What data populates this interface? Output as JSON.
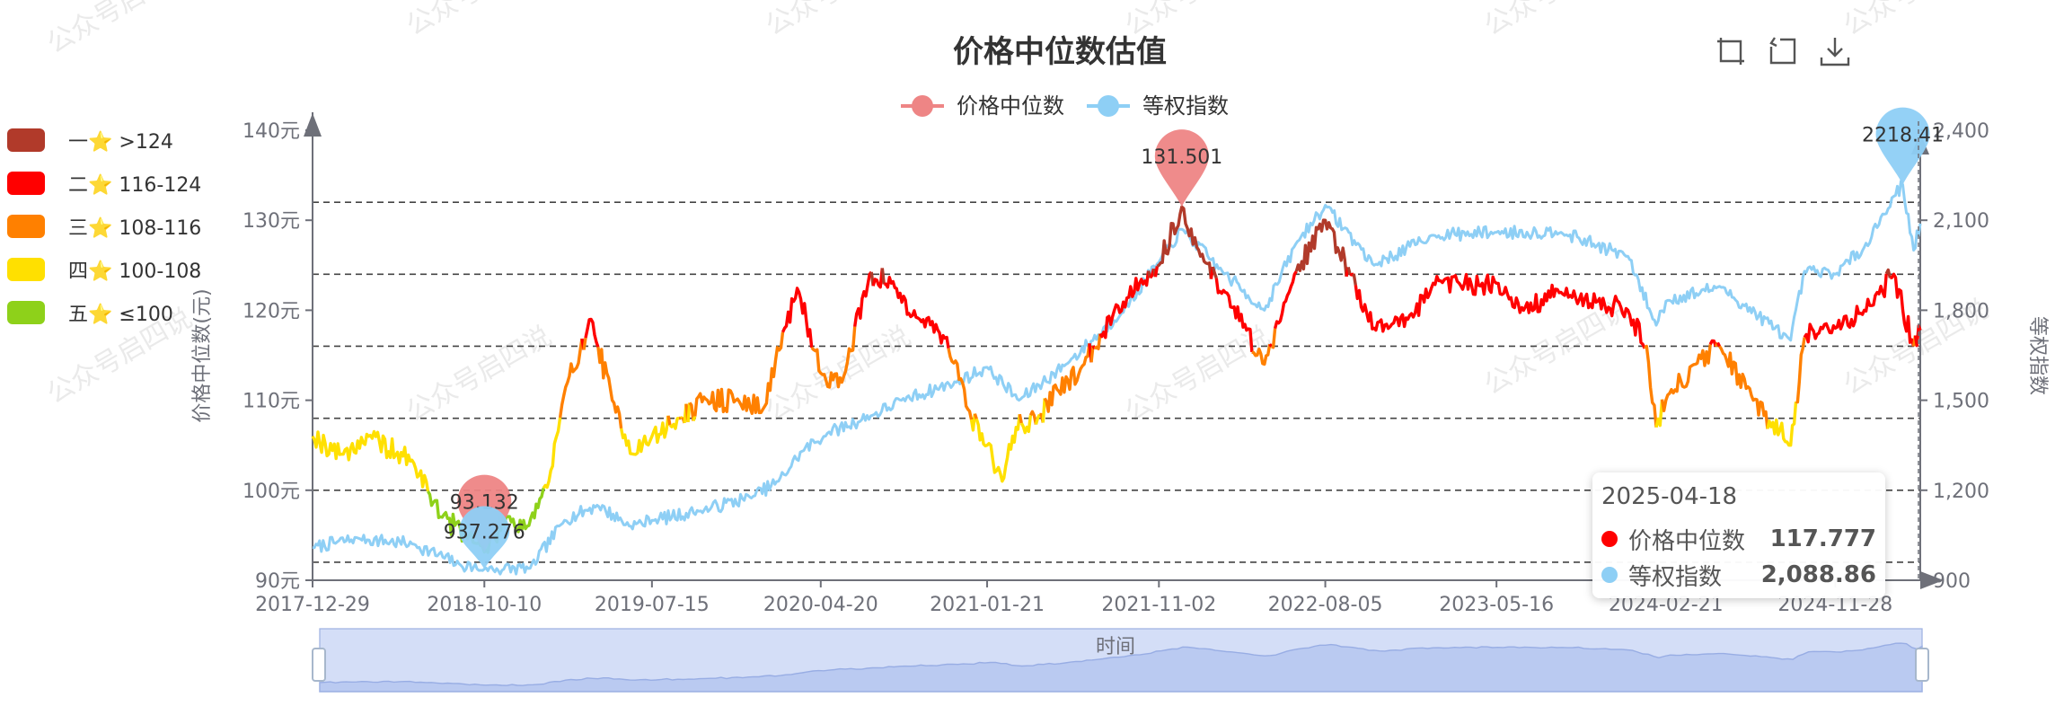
{
  "title": "价格中位数估值",
  "legend_top": [
    {
      "name": "价格中位数",
      "color": "#ee8585"
    },
    {
      "name": "等权指数",
      "color": "#8ecff5"
    }
  ],
  "valuation_bands": [
    {
      "label": "一⭐  >124",
      "color": "#b13a2a"
    },
    {
      "label": "二⭐  116-124",
      "color": "#ff0000"
    },
    {
      "label": "三⭐  108-116",
      "color": "#ff8000"
    },
    {
      "label": "四⭐  100-108",
      "color": "#ffe000"
    },
    {
      "label": "五⭐  ≤100",
      "color": "#8ed11a"
    }
  ],
  "toolbox": [
    "zoom-icon",
    "restore-icon",
    "download-icon"
  ],
  "tooltip": {
    "date": "2025-04-18",
    "rows": [
      {
        "name": "价格中位数",
        "value": "117.777",
        "color": "#ff0000"
      },
      {
        "name": "等权指数",
        "value": "2,088.86",
        "color": "#8ecff5"
      }
    ]
  },
  "watermark": "公众号启四说",
  "datazoom": {
    "label": "时间"
  },
  "chart_data": {
    "type": "line",
    "xlabel": "",
    "ylabel_left": "价格中位数(元)",
    "ylabel_right": "等权指数",
    "x_ticks": [
      "2017-12-29",
      "2018-10-10",
      "2019-07-15",
      "2020-04-20",
      "2021-01-21",
      "2021-11-02",
      "2022-08-05",
      "2023-05-16",
      "2024-02-21",
      "2024-11-28"
    ],
    "y_left_ticks": [
      "140元",
      "130元",
      "120元",
      "110元",
      "100元",
      "90元"
    ],
    "y_right_ticks": [
      "2,400",
      "2,100",
      "1,800",
      "1,500",
      "1,200",
      "900"
    ],
    "y_left_range": [
      90,
      140
    ],
    "y_right_range": [
      900,
      2400
    ],
    "reference_lines": [
      132,
      124,
      116,
      108,
      100,
      92
    ],
    "median_points": [
      {
        "x": "2017-12-29",
        "y": 106
      },
      {
        "x": "2018-02-15",
        "y": 104
      },
      {
        "x": "2018-04-01",
        "y": 106
      },
      {
        "x": "2018-06-15",
        "y": 103
      },
      {
        "x": "2018-08-01",
        "y": 97
      },
      {
        "x": "2018-09-15",
        "y": 95
      },
      {
        "x": "2018-10-10",
        "y": 93.132
      },
      {
        "x": "2018-11-15",
        "y": 97
      },
      {
        "x": "2018-12-20",
        "y": 96
      },
      {
        "x": "2019-01-25",
        "y": 101
      },
      {
        "x": "2019-02-25",
        "y": 112
      },
      {
        "x": "2019-04-05",
        "y": 119
      },
      {
        "x": "2019-05-10",
        "y": 110
      },
      {
        "x": "2019-06-15",
        "y": 104
      },
      {
        "x": "2019-07-15",
        "y": 106
      },
      {
        "x": "2019-09-01",
        "y": 108
      },
      {
        "x": "2019-10-15",
        "y": 110
      },
      {
        "x": "2019-12-01",
        "y": 110
      },
      {
        "x": "2020-01-15",
        "y": 109
      },
      {
        "x": "2020-02-20",
        "y": 118
      },
      {
        "x": "2020-03-15",
        "y": 122
      },
      {
        "x": "2020-04-20",
        "y": 113
      },
      {
        "x": "2020-05-25",
        "y": 112
      },
      {
        "x": "2020-07-10",
        "y": 124
      },
      {
        "x": "2020-08-15",
        "y": 123
      },
      {
        "x": "2020-10-01",
        "y": 119
      },
      {
        "x": "2020-11-15",
        "y": 117
      },
      {
        "x": "2020-12-20",
        "y": 109
      },
      {
        "x": "2021-01-21",
        "y": 105
      },
      {
        "x": "2021-02-15",
        "y": 101
      },
      {
        "x": "2021-03-10",
        "y": 107
      },
      {
        "x": "2021-04-15",
        "y": 108
      },
      {
        "x": "2021-05-20",
        "y": 111
      },
      {
        "x": "2021-07-01",
        "y": 114
      },
      {
        "x": "2021-08-20",
        "y": 120
      },
      {
        "x": "2021-10-01",
        "y": 123
      },
      {
        "x": "2021-11-02",
        "y": 125
      },
      {
        "x": "2021-12-10",
        "y": 131.501
      },
      {
        "x": "2022-01-10",
        "y": 126
      },
      {
        "x": "2022-02-20",
        "y": 122
      },
      {
        "x": "2022-04-26",
        "y": 114
      },
      {
        "x": "2022-06-15",
        "y": 124
      },
      {
        "x": "2022-08-05",
        "y": 130
      },
      {
        "x": "2022-09-15",
        "y": 124
      },
      {
        "x": "2022-10-25",
        "y": 118
      },
      {
        "x": "2022-12-20",
        "y": 119
      },
      {
        "x": "2023-01-31",
        "y": 123
      },
      {
        "x": "2023-03-15",
        "y": 123
      },
      {
        "x": "2023-05-16",
        "y": 123
      },
      {
        "x": "2023-06-30",
        "y": 120
      },
      {
        "x": "2023-08-31",
        "y": 122
      },
      {
        "x": "2023-10-31",
        "y": 121
      },
      {
        "x": "2023-12-20",
        "y": 120
      },
      {
        "x": "2024-01-20",
        "y": 116
      },
      {
        "x": "2024-02-05",
        "y": 107
      },
      {
        "x": "2024-02-21",
        "y": 110
      },
      {
        "x": "2024-04-10",
        "y": 114
      },
      {
        "x": "2024-05-20",
        "y": 116
      },
      {
        "x": "2024-07-15",
        "y": 110
      },
      {
        "x": "2024-09-15",
        "y": 105
      },
      {
        "x": "2024-10-08",
        "y": 117
      },
      {
        "x": "2024-11-28",
        "y": 118
      },
      {
        "x": "2025-01-15",
        "y": 120
      },
      {
        "x": "2025-03-05",
        "y": 124
      },
      {
        "x": "2025-04-07",
        "y": 116
      },
      {
        "x": "2025-04-18",
        "y": 117.777
      }
    ],
    "index_points": [
      {
        "x": "2017-12-29",
        "y": 1010
      },
      {
        "x": "2018-03-15",
        "y": 1040
      },
      {
        "x": "2018-06-15",
        "y": 1020
      },
      {
        "x": "2018-09-01",
        "y": 950
      },
      {
        "x": "2018-10-10",
        "y": 937.276
      },
      {
        "x": "2018-12-25",
        "y": 940
      },
      {
        "x": "2019-02-20",
        "y": 1100
      },
      {
        "x": "2019-04-15",
        "y": 1150
      },
      {
        "x": "2019-06-10",
        "y": 1080
      },
      {
        "x": "2019-07-15",
        "y": 1100
      },
      {
        "x": "2019-10-01",
        "y": 1130
      },
      {
        "x": "2019-12-30",
        "y": 1180
      },
      {
        "x": "2020-02-10",
        "y": 1230
      },
      {
        "x": "2020-03-20",
        "y": 1330
      },
      {
        "x": "2020-05-01",
        "y": 1390
      },
      {
        "x": "2020-07-15",
        "y": 1450
      },
      {
        "x": "2020-09-01",
        "y": 1500
      },
      {
        "x": "2020-12-01",
        "y": 1560
      },
      {
        "x": "2021-01-21",
        "y": 1610
      },
      {
        "x": "2021-03-15",
        "y": 1500
      },
      {
        "x": "2021-06-01",
        "y": 1620
      },
      {
        "x": "2021-09-01",
        "y": 1790
      },
      {
        "x": "2021-11-02",
        "y": 1960
      },
      {
        "x": "2021-12-10",
        "y": 2070
      },
      {
        "x": "2022-02-15",
        "y": 1930
      },
      {
        "x": "2022-04-26",
        "y": 1800
      },
      {
        "x": "2022-06-20",
        "y": 2030
      },
      {
        "x": "2022-08-05",
        "y": 2150
      },
      {
        "x": "2022-10-25",
        "y": 1950
      },
      {
        "x": "2023-01-31",
        "y": 2050
      },
      {
        "x": "2023-05-16",
        "y": 2060
      },
      {
        "x": "2023-08-31",
        "y": 2060
      },
      {
        "x": "2023-12-20",
        "y": 1980
      },
      {
        "x": "2024-02-05",
        "y": 1750
      },
      {
        "x": "2024-02-21",
        "y": 1830
      },
      {
        "x": "2024-05-20",
        "y": 1880
      },
      {
        "x": "2024-09-15",
        "y": 1700
      },
      {
        "x": "2024-10-08",
        "y": 1930
      },
      {
        "x": "2024-11-28",
        "y": 1920
      },
      {
        "x": "2025-01-15",
        "y": 2010
      },
      {
        "x": "2025-03-05",
        "y": 2180
      },
      {
        "x": "2025-03-20",
        "y": 2218.41
      },
      {
        "x": "2025-04-07",
        "y": 2000
      },
      {
        "x": "2025-04-18",
        "y": 2088.86
      }
    ],
    "markers": [
      {
        "series": "价格中位数",
        "label": "93.132",
        "x": "2018-10-10",
        "y": 93.132,
        "type": "min"
      },
      {
        "series": "价格中位数",
        "label": "131.501",
        "x": "2021-12-10",
        "y": 131.501,
        "type": "max"
      },
      {
        "series": "等权指数",
        "label": "937.276",
        "x": "2018-10-10",
        "y": 937.276,
        "type": "min"
      },
      {
        "series": "等权指数",
        "label": "2218.41",
        "x": "2025-03-20",
        "y": 2218.41,
        "type": "max"
      }
    ]
  }
}
